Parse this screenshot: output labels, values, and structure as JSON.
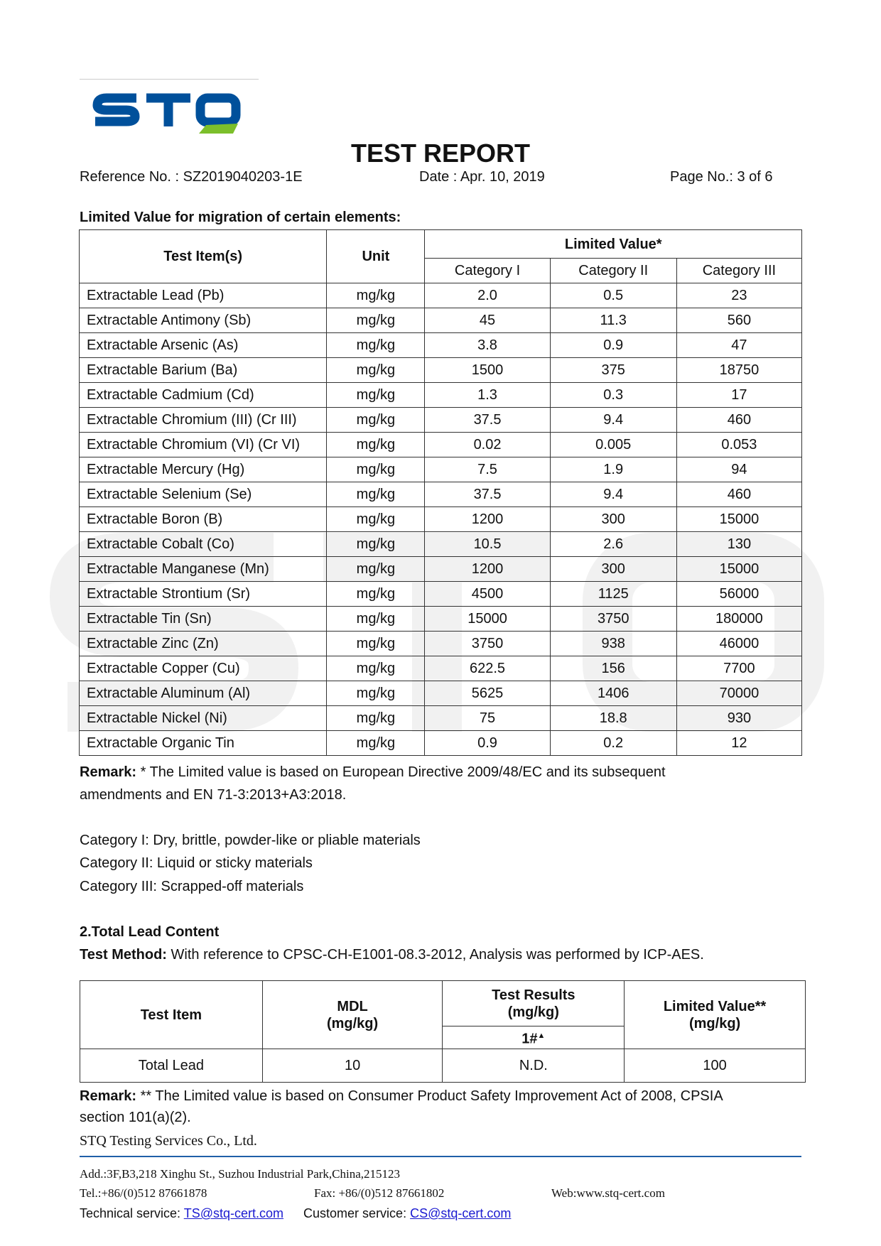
{
  "header": {
    "logo_text": "STQ",
    "title": "TEST REPORT",
    "reference": "Reference No. : SZ2019040203-1E",
    "date": "Date : Apr. 10, 2019",
    "page": "Page No.: 3 of 6"
  },
  "colors": {
    "logo_blue": "#00509b",
    "logo_green": "#7cbf2b",
    "footer_line": "#1f5fa8"
  },
  "section1": {
    "title": "Limited Value for migration of certain elements:",
    "headers": {
      "item": "Test Item(s)",
      "unit": "Unit",
      "limited": "Limited Value*",
      "cat1": "Category I",
      "cat2": "Category II",
      "cat3": "Category III"
    },
    "rows": [
      [
        "Extractable Lead (Pb)",
        "mg/kg",
        "2.0",
        "0.5",
        "23"
      ],
      [
        "Extractable Antimony (Sb)",
        "mg/kg",
        "45",
        "11.3",
        "560"
      ],
      [
        "Extractable Arsenic (As)",
        "mg/kg",
        "3.8",
        "0.9",
        "47"
      ],
      [
        "Extractable Barium (Ba)",
        "mg/kg",
        "1500",
        "375",
        "18750"
      ],
      [
        "Extractable Cadmium (Cd)",
        "mg/kg",
        "1.3",
        "0.3",
        "17"
      ],
      [
        "Extractable Chromium (III) (Cr III)",
        "mg/kg",
        "37.5",
        "9.4",
        "460"
      ],
      [
        "Extractable Chromium (VI) (Cr VI)",
        "mg/kg",
        "0.02",
        "0.005",
        "0.053"
      ],
      [
        "Extractable Mercury (Hg)",
        "mg/kg",
        "7.5",
        "1.9",
        "94"
      ],
      [
        "Extractable Selenium (Se)",
        "mg/kg",
        "37.5",
        "9.4",
        "460"
      ],
      [
        "Extractable Boron (B)",
        "mg/kg",
        "1200",
        "300",
        "15000"
      ],
      [
        "Extractable Cobalt (Co)",
        "mg/kg",
        "10.5",
        "2.6",
        "130"
      ],
      [
        "Extractable Manganese (Mn)",
        "mg/kg",
        "1200",
        "300",
        "15000"
      ],
      [
        "Extractable Strontium (Sr)",
        "mg/kg",
        "4500",
        "1125",
        "56000"
      ],
      [
        "Extractable Tin (Sn)",
        "mg/kg",
        "15000",
        "3750",
        "180000"
      ],
      [
        "Extractable Zinc (Zn)",
        "mg/kg",
        "3750",
        "938",
        "46000"
      ],
      [
        "Extractable Copper (Cu)",
        "mg/kg",
        "622.5",
        "156",
        "7700"
      ],
      [
        "Extractable Aluminum (Al)",
        "mg/kg",
        "5625",
        "1406",
        "70000"
      ],
      [
        "Extractable Nickel (Ni)",
        "mg/kg",
        "75",
        "18.8",
        "930"
      ],
      [
        "Extractable Organic Tin",
        "mg/kg",
        "0.9",
        "0.2",
        "12"
      ]
    ],
    "remark_label": "Remark:",
    "remark_line1": " * The Limited value is based on European Directive 2009/48/EC and its subsequent",
    "remark_line2": "amendments and EN 71-3:2013+A3:2018.",
    "cat_notes": [
      "Category I: Dry, brittle, powder-like or pliable materials",
      "Category II: Liquid or sticky materials",
      "Category III: Scrapped-off materials"
    ]
  },
  "section2": {
    "title": "2.Total Lead Content",
    "method_label": "Test Method:",
    "method": " With reference to CPSC-CH-E1001-08.3-2012, Analysis was performed by ICP-AES.",
    "headers": {
      "item": "Test Item",
      "mdl": "MDL",
      "mdl_unit": "(mg/kg)",
      "results": "Test Results",
      "results_unit": "(mg/kg)",
      "sample": "1#",
      "sample_mark": "▲",
      "limit": "Limited Value**",
      "limit_unit": "(mg/kg)"
    },
    "row": [
      "Total Lead",
      "10",
      "N.D.",
      "100"
    ],
    "remark_label": "Remark:",
    "remark_line1": " ** The Limited value is based on Consumer Product Safety Improvement Act of 2008, CPSIA",
    "remark_line2": "section 101(a)(2)."
  },
  "footer": {
    "company": "STQ Testing Services Co., Ltd.",
    "address": "Add.:3F,B3,218 Xinghu St., Suzhou Industrial Park,China,215123",
    "tel": "Tel.:+86/(0)512 87661878",
    "fax": "Fax: +86/(0)512 87661802",
    "web": "Web:www.stq-cert.com",
    "tech_label": "Technical service: ",
    "tech_email": "TS@stq-cert.com",
    "cust_label": "Customer service: ",
    "cust_email": "CS@stq-cert.com"
  }
}
